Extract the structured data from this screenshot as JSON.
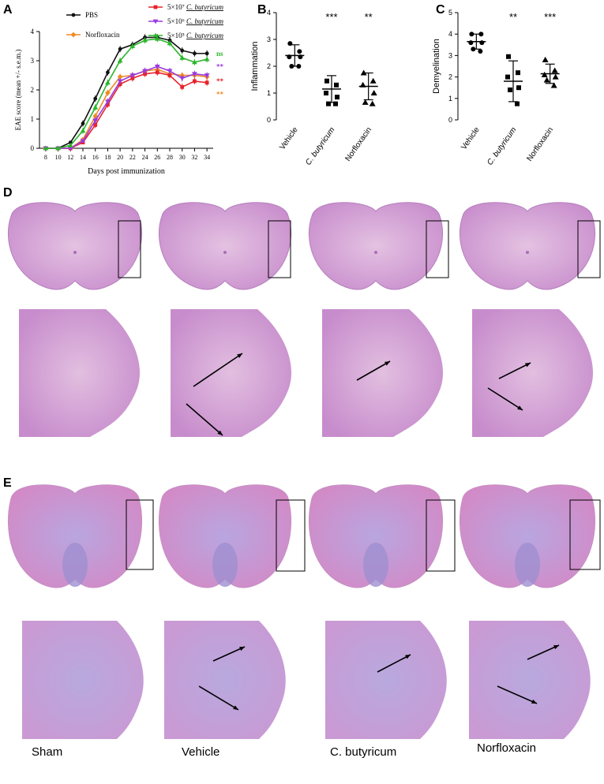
{
  "panels": {
    "A": "A",
    "B": "B",
    "C": "C",
    "D": "D",
    "E": "E"
  },
  "colors": {
    "pbs": "#111111",
    "norfloxacin": "#f08a24",
    "cb_high": "#e8232a",
    "cb_mid": "#9a3be0",
    "cb_low": "#2bb52b",
    "he_pink": "#d9a9d6",
    "lfb_blue": "#a996d8"
  },
  "chart_data": [
    {
      "type": "line",
      "panel": "A",
      "xlabel": "Days post immunization",
      "ylabel": "EAE score (mean +/- s.e.m.)",
      "xlim": [
        7,
        35
      ],
      "ylim": [
        0,
        4
      ],
      "xticks": [
        "8",
        "10",
        "12",
        "14",
        "16",
        "18",
        "20",
        "22",
        "24",
        "26",
        "28",
        "30",
        "32",
        "34"
      ],
      "yticks": [
        "0",
        "1",
        "2",
        "3",
        "4"
      ],
      "x": [
        8,
        10,
        12,
        14,
        16,
        18,
        20,
        22,
        24,
        26,
        28,
        30,
        32,
        34
      ],
      "legend": [
        {
          "label": "PBS",
          "prefix": "",
          "italic": "",
          "color": "#111111"
        },
        {
          "label": "Norfloxacin",
          "prefix": "",
          "italic": "",
          "color": "#f08a24"
        },
        {
          "label": "",
          "prefix": "5×10⁷",
          "italic": "C. butyricum",
          "color": "#e8232a"
        },
        {
          "label": "",
          "prefix": "5×10⁶",
          "italic": "C. butyricum",
          "color": "#9a3be0"
        },
        {
          "label": "",
          "prefix": "5×10⁵",
          "italic": "C. butyricum",
          "color": "#2bb52b"
        }
      ],
      "series": [
        {
          "name": "PBS",
          "color": "#111111",
          "marker": "circle",
          "values": [
            0,
            0,
            0.2,
            0.85,
            1.7,
            2.6,
            3.4,
            3.55,
            3.8,
            3.8,
            3.7,
            3.35,
            3.25,
            3.25
          ]
        },
        {
          "name": "Norfloxacin",
          "color": "#f08a24",
          "marker": "diamond",
          "values": [
            0,
            0,
            0,
            0.3,
            1.1,
            1.9,
            2.45,
            2.5,
            2.65,
            2.7,
            2.55,
            2.5,
            2.5,
            2.45
          ]
        },
        {
          "name": "5×10⁷ C. butyricum",
          "color": "#e8232a",
          "marker": "square",
          "values": [
            0,
            0,
            0,
            0.2,
            0.8,
            1.5,
            2.2,
            2.4,
            2.55,
            2.6,
            2.5,
            2.1,
            2.3,
            2.25
          ]
        },
        {
          "name": "5×10⁶ C. butyricum",
          "color": "#9a3be0",
          "marker": "triangle-down",
          "values": [
            0,
            0,
            0,
            0.25,
            0.95,
            1.6,
            2.3,
            2.5,
            2.65,
            2.8,
            2.65,
            2.4,
            2.55,
            2.5
          ]
        },
        {
          "name": "5×10⁵ C. butyricum",
          "color": "#2bb52b",
          "marker": "triangle",
          "values": [
            0,
            0,
            0.1,
            0.6,
            1.4,
            2.25,
            3.0,
            3.5,
            3.7,
            3.75,
            3.6,
            3.1,
            2.95,
            3.05
          ]
        }
      ],
      "annotations": [
        {
          "text": "ns",
          "color": "#2bb52b",
          "y": 3.25
        },
        {
          "text": "**",
          "color": "#9a3be0",
          "y": 2.8
        },
        {
          "text": "**",
          "color": "#e8232a",
          "y": 2.3
        },
        {
          "text": "**",
          "color": "#f08a24",
          "y": 1.85
        }
      ]
    },
    {
      "type": "scatter",
      "panel": "B",
      "ylabel": "Inflammation",
      "ylim": [
        0,
        4
      ],
      "yticks": [
        "0",
        "1",
        "2",
        "3",
        "4"
      ],
      "categories": [
        "Vehicle",
        "C. butyricum",
        "Norfloxacin"
      ],
      "italic": [
        false,
        true,
        false
      ],
      "markers": [
        "circle",
        "square",
        "triangle"
      ],
      "means": [
        2.4,
        1.15,
        1.25
      ],
      "sd": [
        0.4,
        0.5,
        0.5
      ],
      "points": [
        [
          2.85,
          2.55,
          2.35,
          2.35,
          2.0,
          2.0
        ],
        [
          1.45,
          1.3,
          1.0,
          0.85,
          0.6,
          0.6
        ],
        [
          1.75,
          1.45,
          1.3,
          1.0,
          0.65,
          0.6
        ]
      ],
      "significance": [
        "",
        "***",
        "**"
      ]
    },
    {
      "type": "scatter",
      "panel": "C",
      "ylabel": "Demyelination",
      "ylim": [
        0,
        5
      ],
      "yticks": [
        "0",
        "1",
        "2",
        "3",
        "4",
        "5"
      ],
      "categories": [
        "Vehicle",
        "C. butyricum",
        "Norfloxacin"
      ],
      "italic": [
        false,
        true,
        false
      ],
      "markers": [
        "circle",
        "square",
        "triangle"
      ],
      "means": [
        3.65,
        1.8,
        2.15
      ],
      "sd": [
        0.35,
        0.95,
        0.45
      ],
      "points": [
        [
          4.0,
          4.0,
          3.6,
          3.6,
          3.3,
          3.2
        ],
        [
          2.95,
          2.2,
          2.0,
          1.5,
          1.4,
          0.75
        ],
        [
          2.8,
          2.3,
          2.1,
          2.0,
          1.85,
          1.6
        ]
      ],
      "significance": [
        "",
        "**",
        "***"
      ]
    }
  ],
  "group_labels": [
    "Sham",
    "Vehicle",
    "C. butyricum",
    "Norfloxacin"
  ]
}
